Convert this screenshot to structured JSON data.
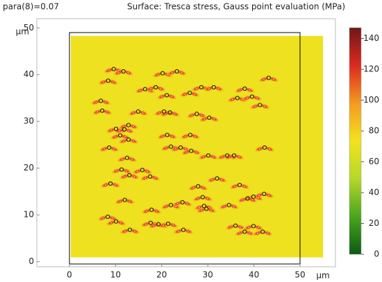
{
  "chart_data": {
    "type": "surface",
    "parameter_label": "para(8)=0.07",
    "title": "Surface: Tresca stress, Gauss point evaluation (MPa)",
    "x_label": "μm",
    "y_label": "μm",
    "xlim": [
      0,
      50
    ],
    "ylim": [
      -0.5,
      49
    ],
    "xticks": [
      0,
      10,
      20,
      30,
      40,
      50
    ],
    "yticks": [
      0,
      10,
      20,
      30,
      40,
      50
    ],
    "surface": {
      "x": [
        0.3,
        55
      ],
      "y": [
        0.9,
        48.3
      ],
      "value": 72
    },
    "clim": [
      0,
      147
    ],
    "cticks": [
      0,
      20,
      40,
      60,
      80,
      100,
      120,
      140
    ],
    "colormap": [
      "#0b5a12",
      "#4aa51e",
      "#b5d82a",
      "#f2e21e",
      "#f39a22",
      "#dc2a20",
      "#6e1818"
    ],
    "holes": {
      "x": [
        9.6,
        11.7,
        8.4,
        20.2,
        23.3,
        16.4,
        18.7,
        21.1,
        26.1,
        28.6,
        31.3,
        38,
        43.2,
        6.8,
        7.1,
        14.9,
        20.5,
        21.8,
        27.6,
        30.3,
        36.4,
        39.6,
        41.3,
        10.1,
        11.9,
        12.8,
        11,
        12.8,
        21.2,
        26.2,
        8.6,
        12.5,
        22,
        24.1,
        26.4,
        30.1,
        34.2,
        35.7,
        42.3,
        11.3,
        15.8,
        17.5,
        13,
        8.9,
        12,
        27.9,
        28.9,
        32,
        36.9,
        39.9,
        42.2,
        8.3,
        10.1,
        13.1,
        17.8,
        22,
        24.5,
        29.2,
        29.7,
        34.6,
        38.6,
        17.6,
        19.3,
        21.4,
        24.7,
        36,
        38,
        39.9,
        41.9
      ],
      "y": [
        41.2,
        40.7,
        38.7,
        40.3,
        40.7,
        36.9,
        37.3,
        35.6,
        36.1,
        37.3,
        37.3,
        37,
        39.3,
        34.4,
        32.3,
        32.1,
        32.1,
        31.9,
        31.6,
        30.8,
        35,
        35.3,
        33.5,
        28.4,
        28.3,
        29.2,
        27,
        26.1,
        27.1,
        27.1,
        24.4,
        22.2,
        24.6,
        24.4,
        23.7,
        22.7,
        22.7,
        22.7,
        24.4,
        19.7,
        19.6,
        18.2,
        18.5,
        16.7,
        13.2,
        16.1,
        13.8,
        17.8,
        16.4,
        13.9,
        14.5,
        9.6,
        8.6,
        6.8,
        11.1,
        12.1,
        12.7,
        11.9,
        11.3,
        12.1,
        13.5,
        8.3,
        8,
        8.1,
        6.8,
        7.7,
        6.4,
        7.6,
        6.4
      ]
    }
  }
}
